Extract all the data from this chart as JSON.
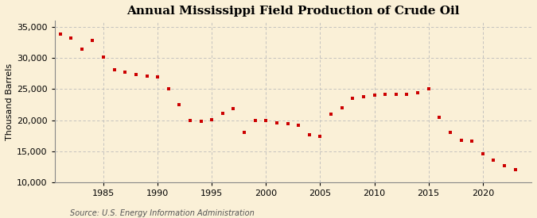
{
  "title": "Annual Mississippi Field Production of Crude Oil",
  "ylabel": "Thousand Barrels",
  "source": "Source: U.S. Energy Information Administration",
  "background_color": "#faf0d7",
  "plot_background_color": "#faf0d7",
  "marker_color": "#cc0000",
  "years": [
    1981,
    1982,
    1983,
    1984,
    1985,
    1986,
    1987,
    1988,
    1989,
    1990,
    1991,
    1992,
    1993,
    1994,
    1995,
    1996,
    1997,
    1998,
    1999,
    2000,
    2001,
    2002,
    2003,
    2004,
    2005,
    2006,
    2007,
    2008,
    2009,
    2010,
    2011,
    2012,
    2013,
    2014,
    2015,
    2016,
    2017,
    2018,
    2019,
    2020,
    2021,
    2022,
    2023
  ],
  "values": [
    33800,
    33200,
    31400,
    32800,
    30200,
    28100,
    27700,
    27400,
    27100,
    27000,
    25000,
    22500,
    20000,
    19800,
    20100,
    21100,
    21800,
    18000,
    19900,
    20000,
    19600,
    19400,
    19200,
    17700,
    17400,
    20900,
    22000,
    23500,
    23800,
    24000,
    24100,
    24100,
    24100,
    24400,
    25000,
    20400,
    18000,
    16800,
    16600,
    14600,
    13500,
    12700,
    12000
  ],
  "ylim": [
    10000,
    36000
  ],
  "yticks": [
    10000,
    15000,
    20000,
    25000,
    30000,
    35000
  ],
  "xlim": [
    1980.5,
    2024.5
  ],
  "xticks": [
    1985,
    1990,
    1995,
    2000,
    2005,
    2010,
    2015,
    2020
  ],
  "grid_color": "#bbbbbb",
  "title_fontsize": 11,
  "label_fontsize": 8,
  "tick_fontsize": 8,
  "source_fontsize": 7
}
